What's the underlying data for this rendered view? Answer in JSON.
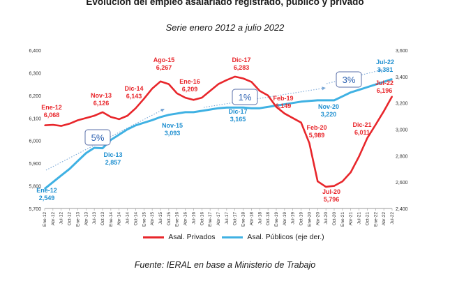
{
  "header": {
    "title": "Evolución del empleo asalariado registrado, público y privado",
    "subtitle": "Serie enero 2012 a julio 2022"
  },
  "footer": {
    "source": "Fuente: IERAL en base a Ministerio de Trabajo"
  },
  "colors": {
    "private": "#e8262b",
    "public": "#3fb1e3",
    "trend": "#7aa7d6",
    "annot_red": "#e8262b",
    "annot_blue": "#1e8fd0"
  },
  "chart_data": {
    "type": "line",
    "title": "Evolución del empleo asalariado registrado, público y privado",
    "subtitle": "Serie enero 2012 a julio 2022",
    "x": [
      "Ene-12",
      "Abr-12",
      "Jul-12",
      "Oct-12",
      "Ene-13",
      "Abr-13",
      "Jul-13",
      "Oct-13",
      "Ene-14",
      "Abr-14",
      "Jul-14",
      "Oct-14",
      "Ene-15",
      "Abr-15",
      "Jul-15",
      "Oct-15",
      "Ene-16",
      "Abr-16",
      "Jul-16",
      "Oct-16",
      "Ene-17",
      "Abr-17",
      "Jul-17",
      "Oct-17",
      "Ene-18",
      "Abr-18",
      "Jul-18",
      "Oct-18",
      "Ene-19",
      "Abr-19",
      "Jul-19",
      "Oct-19",
      "Ene-20",
      "Abr-20",
      "Jul-20",
      "Oct-20",
      "Ene-21",
      "Abr-21",
      "Jul-21",
      "Oct-21",
      "Ene-22",
      "Abr-22",
      "Jul-22"
    ],
    "y_left_ticks": [
      "5,700",
      "5,800",
      "5,900",
      "6,000",
      "6,100",
      "6,200",
      "6,300",
      "6,400"
    ],
    "y_right_ticks": [
      "2,400",
      "2,600",
      "2,800",
      "3,000",
      "3,200",
      "3,400",
      "3,600"
    ],
    "ylim_left": [
      5700,
      6400
    ],
    "ylim_right": [
      2400,
      3600
    ],
    "series": [
      {
        "name": "Asal. Privados",
        "axis": "left",
        "values": [
          6068,
          6070,
          6065,
          6075,
          6090,
          6100,
          6110,
          6126,
          6105,
          6095,
          6110,
          6143,
          6185,
          6230,
          6262,
          6250,
          6209,
          6190,
          6180,
          6190,
          6220,
          6250,
          6268,
          6283,
          6275,
          6260,
          6220,
          6200,
          6149,
          6120,
          6100,
          6080,
          5989,
          5820,
          5796,
          5800,
          5820,
          5860,
          5930,
          6011,
          6070,
          6130,
          6196
        ]
      },
      {
        "name": "Asal. Públicos (eje der.)",
        "axis": "right",
        "values": [
          2549,
          2600,
          2650,
          2700,
          2760,
          2820,
          2860,
          2857,
          2920,
          2960,
          3000,
          3030,
          3050,
          3070,
          3093,
          3110,
          3120,
          3130,
          3130,
          3140,
          3150,
          3160,
          3165,
          3165,
          3165,
          3160,
          3160,
          3170,
          3180,
          3190,
          3200,
          3210,
          3215,
          3220,
          3220,
          3220,
          3250,
          3280,
          3300,
          3320,
          3340,
          3360,
          3381
        ]
      }
    ],
    "annotations": [
      {
        "series": "private",
        "text": "Ene-12",
        "value": "6,068"
      },
      {
        "series": "private",
        "text": "Nov-13",
        "value": "6,126"
      },
      {
        "series": "private",
        "text": "Dic-14",
        "value": "6,143"
      },
      {
        "series": "private",
        "text": "Ago-15",
        "value": "6,267"
      },
      {
        "series": "private",
        "text": "Ene-16",
        "value": "6,209"
      },
      {
        "series": "private",
        "text": "Dic-17",
        "value": "6,283"
      },
      {
        "series": "private",
        "text": "Feb-19",
        "value": "6,149"
      },
      {
        "series": "private",
        "text": "Feb-20",
        "value": "5,989"
      },
      {
        "series": "private",
        "text": "Jul-20",
        "value": "5,796"
      },
      {
        "series": "private",
        "text": "Dic-21",
        "value": "6,011"
      },
      {
        "series": "private",
        "text": "Jul-22",
        "value": "6,196"
      },
      {
        "series": "public",
        "text": "Ene-12",
        "value": "2,549"
      },
      {
        "series": "public",
        "text": "Dic-13",
        "value": "2,857"
      },
      {
        "series": "public",
        "text": "Nov-15",
        "value": "3,093"
      },
      {
        "series": "public",
        "text": "Dic-17",
        "value": "3,165"
      },
      {
        "series": "public",
        "text": "Nov-20",
        "value": "3,220"
      },
      {
        "series": "public",
        "text": "Jul-22",
        "value": "3,381"
      }
    ],
    "growth_boxes": [
      "5%",
      "1%",
      "3%"
    ],
    "legend_position": "bottom",
    "grid": false
  }
}
